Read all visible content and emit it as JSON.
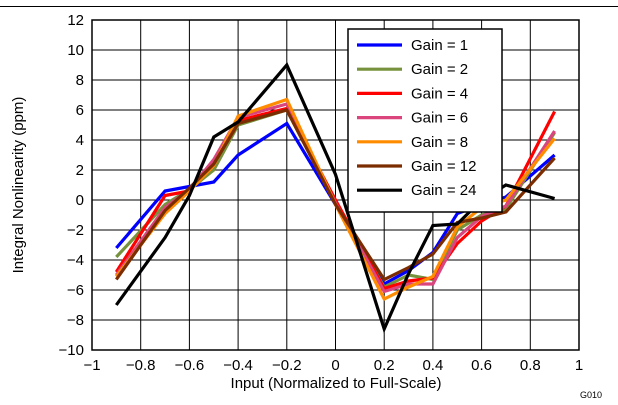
{
  "figure_id": "G010",
  "chart_data": {
    "type": "line",
    "xlabel": "Input (Normalized to Full-Scale)",
    "ylabel": "Integral Nonlinearity (ppm)",
    "xlim": [
      -1,
      1
    ],
    "ylim": [
      -10,
      12
    ],
    "xticks": [
      -1,
      -0.8,
      -0.6,
      -0.4,
      -0.2,
      0,
      0.2,
      0.4,
      0.6,
      0.8,
      1
    ],
    "xtick_labels": [
      "−1",
      "−0.8",
      "−0.6",
      "−0.4",
      "−0.2",
      "0",
      "0.2",
      "0.4",
      "0.6",
      "0.8",
      "1"
    ],
    "yticks": [
      -10,
      -8,
      -6,
      -4,
      -2,
      0,
      2,
      4,
      6,
      8,
      10,
      12
    ],
    "ytick_labels": [
      "−10",
      "−8",
      "−6",
      "−4",
      "−2",
      "0",
      "2",
      "4",
      "6",
      "8",
      "10",
      "12"
    ],
    "grid": true,
    "legend_position": "top-right",
    "x": [
      -0.9,
      -0.7,
      -0.6,
      -0.5,
      -0.4,
      -0.2,
      0,
      0.2,
      0.3,
      0.4,
      0.5,
      0.6,
      0.7,
      0.9
    ],
    "series": [
      {
        "name": "Gain = 1",
        "color": "#0000ff",
        "values": [
          -3.2,
          0.6,
          0.9,
          1.2,
          3.0,
          5.1,
          -0.3,
          -5.6,
          -4.7,
          -3.5,
          -0.9,
          -0.3,
          0.2,
          3.0
        ]
      },
      {
        "name": "Gain = 2",
        "color": "#76923c",
        "values": [
          -3.8,
          -0.3,
          0.7,
          2.0,
          5.0,
          6.0,
          -0.2,
          -5.8,
          -5.0,
          -5.3,
          -2.0,
          -1.0,
          -0.6,
          4.5
        ]
      },
      {
        "name": "Gain = 4",
        "color": "#ff0000",
        "values": [
          -4.8,
          0.3,
          0.6,
          2.4,
          5.3,
          6.1,
          0.0,
          -5.9,
          -5.4,
          -5.2,
          -2.9,
          -1.4,
          -0.4,
          5.9
        ]
      },
      {
        "name": "Gain = 6",
        "color": "#d9457c",
        "values": [
          -5.0,
          -0.5,
          0.7,
          2.7,
          5.5,
          6.4,
          -0.2,
          -6.1,
          -5.6,
          -5.6,
          -2.5,
          -1.1,
          -0.4,
          4.6
        ]
      },
      {
        "name": "Gain = 8",
        "color": "#ff8c00",
        "values": [
          -5.1,
          -0.9,
          0.6,
          2.3,
          5.6,
          6.7,
          -0.3,
          -6.6,
          -5.8,
          -5.1,
          -1.8,
          -0.5,
          0.0,
          4.1
        ]
      },
      {
        "name": "Gain = 12",
        "color": "#7b2c00",
        "values": [
          -5.3,
          -0.7,
          0.8,
          2.4,
          5.1,
          6.0,
          -0.3,
          -5.3,
          -4.5,
          -3.6,
          -1.5,
          -1.2,
          -0.8,
          2.8
        ]
      },
      {
        "name": "Gain = 24",
        "color": "#000000",
        "values": [
          -7.0,
          -2.5,
          0.3,
          4.2,
          5.2,
          9.0,
          1.7,
          -8.6,
          -4.9,
          -1.7,
          -1.6,
          0.0,
          1.0,
          0.1
        ]
      }
    ]
  }
}
